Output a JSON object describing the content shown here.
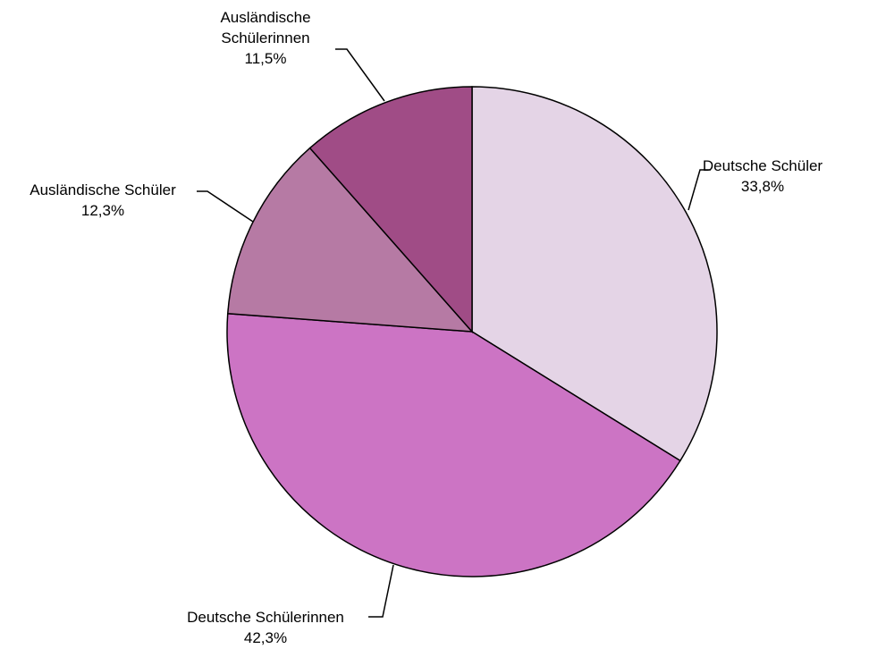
{
  "chart_data": {
    "type": "pie",
    "categories": [
      "Deutsche Schüler",
      "Deutsche Schülerinnen",
      "Ausländische Schüler",
      "Ausländische Schülerinnen"
    ],
    "values": [
      33.8,
      42.3,
      12.3,
      11.5
    ],
    "value_labels": [
      "33,8%",
      "42,3%",
      "12,3%",
      "11,5%"
    ],
    "colors": [
      "#e4d4e6",
      "#cc74c4",
      "#b67aa4",
      "#a04c86"
    ]
  }
}
